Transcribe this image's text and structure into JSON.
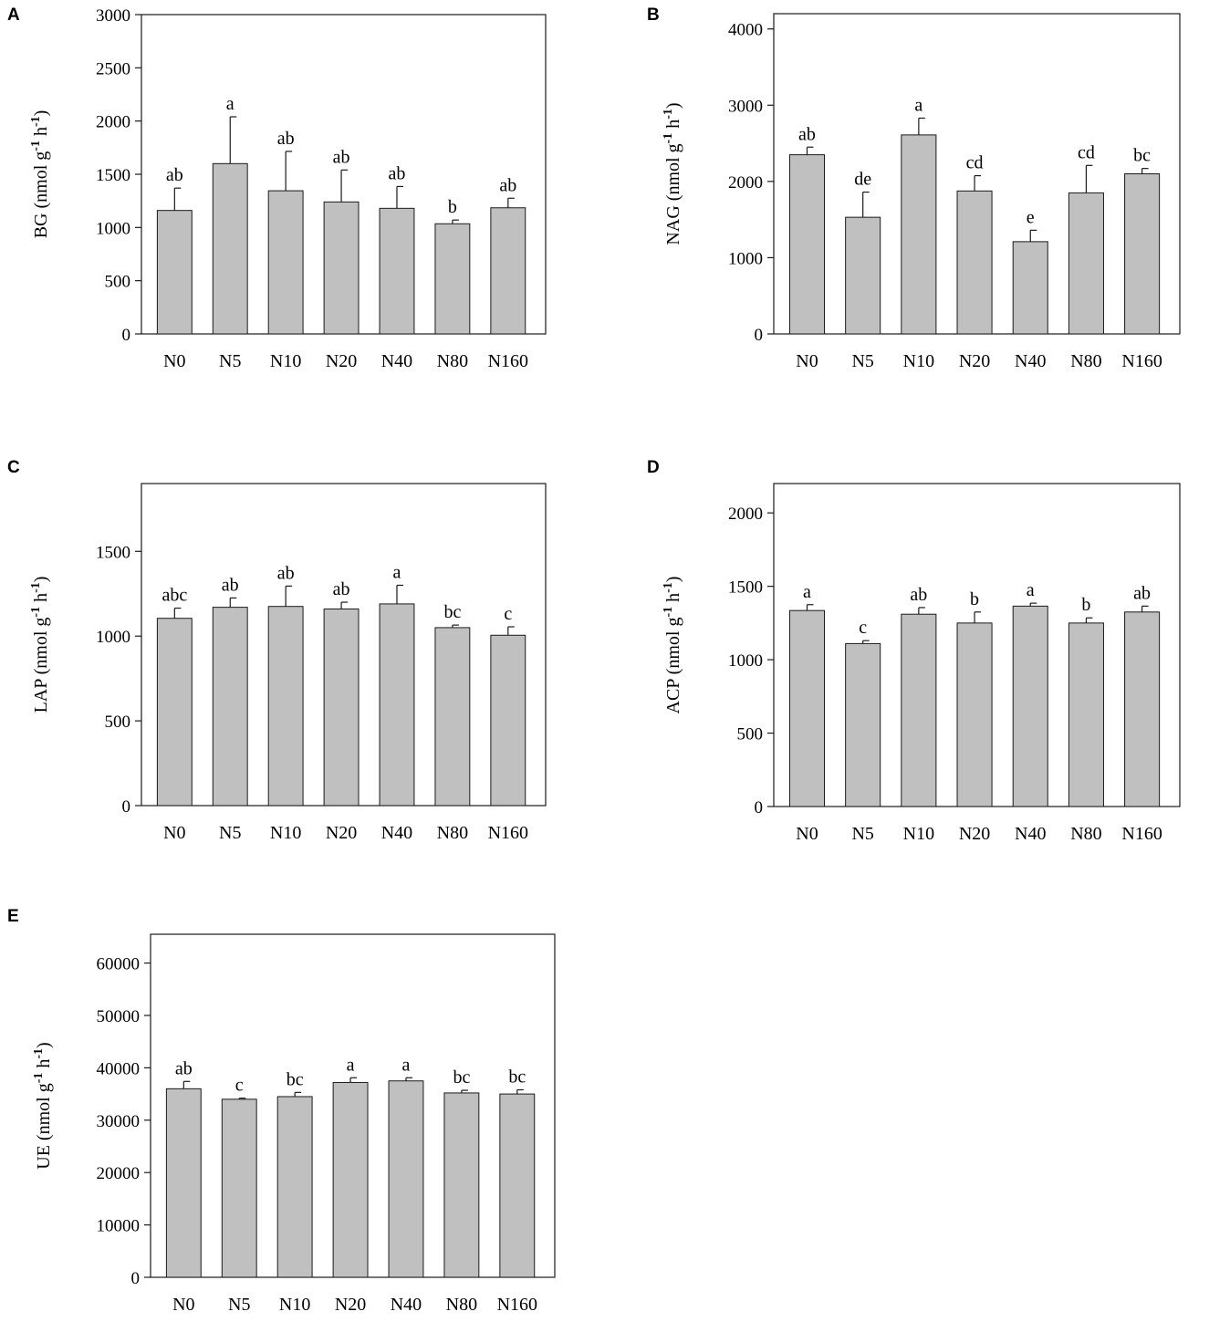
{
  "chart_data": [
    {
      "type": "bar",
      "panel": "A",
      "ylabel": {
        "main": "BG",
        "units_pre": "(nmol g",
        "sup1": "-1",
        "units_mid": " h",
        "sup2": "-1",
        "units_post": ")"
      },
      "categories": [
        "N0",
        "N5",
        "N10",
        "N20",
        "N40",
        "N80",
        "N160"
      ],
      "values": [
        1160,
        1600,
        1345,
        1240,
        1180,
        1035,
        1185
      ],
      "errors": [
        210,
        440,
        370,
        300,
        205,
        35,
        90
      ],
      "letters": [
        "ab",
        "a",
        "ab",
        "ab",
        "ab",
        "b",
        "ab"
      ],
      "ylim": [
        0,
        3000
      ],
      "yticks": [
        0,
        500,
        1000,
        1500,
        2000,
        2500,
        3000
      ],
      "ytick_labels": [
        "0",
        "500",
        "1000",
        "1500",
        "2000",
        "2500",
        "3000"
      ]
    },
    {
      "type": "bar",
      "panel": "B",
      "ylabel": {
        "main": "NAG",
        "units_pre": "(nmol g",
        "sup1": "-1",
        "units_mid": " h",
        "sup2": "-1",
        "units_post": ")"
      },
      "categories": [
        "N0",
        "N5",
        "N10",
        "N20",
        "N40",
        "N80",
        "N160"
      ],
      "values": [
        2350,
        1530,
        2610,
        1875,
        1210,
        1850,
        2100
      ],
      "errors": [
        100,
        330,
        220,
        200,
        150,
        360,
        70
      ],
      "letters": [
        "ab",
        "de",
        "a",
        "cd",
        "e",
        "cd",
        "bc"
      ],
      "ylim": [
        0,
        4200
      ],
      "yticks": [
        0,
        1000,
        2000,
        3000,
        4000
      ],
      "ytick_labels": [
        "0",
        "1000",
        "2000",
        "3000",
        "4000"
      ]
    },
    {
      "type": "bar",
      "panel": "C",
      "ylabel": {
        "main": "LAP",
        "units_pre": "(nmol g",
        "sup1": "-1",
        "units_mid": " h",
        "sup2": "-1",
        "units_post": ")"
      },
      "categories": [
        "N0",
        "N5",
        "N10",
        "N20",
        "N40",
        "N80",
        "N160"
      ],
      "values": [
        1105,
        1170,
        1175,
        1160,
        1190,
        1050,
        1005
      ],
      "errors": [
        60,
        55,
        120,
        40,
        110,
        15,
        50
      ],
      "letters": [
        "abc",
        "ab",
        "ab",
        "ab",
        "a",
        "bc",
        "c"
      ],
      "ylim": [
        0,
        1900
      ],
      "yticks": [
        0,
        500,
        1000,
        1500
      ],
      "ytick_labels": [
        "0",
        "500",
        "1000",
        "1500"
      ]
    },
    {
      "type": "bar",
      "panel": "D",
      "ylabel": {
        "main": "ACP",
        "units_pre": "(nmol g",
        "sup1": "-1",
        "units_mid": " h",
        "sup2": "-1",
        "units_post": ")"
      },
      "categories": [
        "N0",
        "N5",
        "N10",
        "N20",
        "N40",
        "N80",
        "N160"
      ],
      "values": [
        1335,
        1110,
        1310,
        1250,
        1365,
        1250,
        1325
      ],
      "errors": [
        40,
        20,
        45,
        75,
        20,
        35,
        40
      ],
      "letters": [
        "a",
        "c",
        "ab",
        "b",
        "a",
        "b",
        "ab"
      ],
      "ylim": [
        0,
        2200
      ],
      "yticks": [
        0,
        500,
        1000,
        1500,
        2000
      ],
      "ytick_labels": [
        "0",
        "500",
        "1000",
        "1500",
        "2000"
      ]
    },
    {
      "type": "bar",
      "panel": "E",
      "ylabel": {
        "main": "UE",
        "units_pre": "(nmol g",
        "sup1": "-1",
        "units_mid": " h",
        "sup2": "-1",
        "units_post": ")"
      },
      "categories": [
        "N0",
        "N5",
        "N10",
        "N20",
        "N40",
        "N80",
        "N160"
      ],
      "values": [
        36000,
        34000,
        34500,
        37200,
        37500,
        35200,
        35000
      ],
      "errors": [
        1400,
        200,
        800,
        900,
        600,
        500,
        800
      ],
      "letters": [
        "ab",
        "c",
        "bc",
        "a",
        "a",
        "bc",
        "bc"
      ],
      "ylim": [
        0,
        65500
      ],
      "yticks": [
        0,
        10000,
        20000,
        30000,
        40000,
        50000,
        60000
      ],
      "ytick_labels": [
        "0",
        "10000",
        "20000",
        "30000",
        "40000",
        "50000",
        "60000"
      ]
    }
  ],
  "colors": {
    "bar_fill": "#c0c0c0",
    "bar_stroke": "#1a1a1a",
    "axis": "#1a1a1a"
  }
}
